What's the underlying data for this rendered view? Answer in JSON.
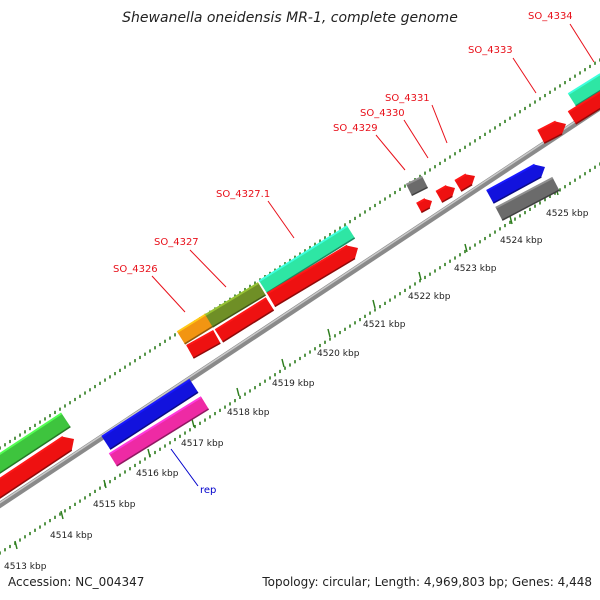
{
  "title": "Shewanella oneidensis MR-1, complete genome",
  "footer": {
    "accession": "Accession: NC_004347",
    "summary": "Topology: circular; Length: 4,969,803 bp; Genes: 4,448"
  },
  "colors": {
    "backbone": "#8a8a8a",
    "tick": "#2e7d1e",
    "label": "#e8101a",
    "rep_label": "#0000cc"
  },
  "ticks": [
    {
      "label": "4513 kbp"
    },
    {
      "label": "4514 kbp"
    },
    {
      "label": "4515 kbp"
    },
    {
      "label": "4516 kbp"
    },
    {
      "label": "4517 kbp"
    },
    {
      "label": "4518 kbp"
    },
    {
      "label": "4519 kbp"
    },
    {
      "label": "4520 kbp"
    },
    {
      "label": "4521 kbp"
    },
    {
      "label": "4522 kbp"
    },
    {
      "label": "4523 kbp"
    },
    {
      "label": "4524 kbp"
    },
    {
      "label": "4525 kbp"
    }
  ],
  "genes": [
    {
      "name": "green-outer",
      "fill": "#3ec43e"
    },
    {
      "name": "red-left",
      "fill": "#ee1111"
    },
    {
      "name": "blue-left",
      "fill": "#1212dd"
    },
    {
      "name": "magenta-rep",
      "fill": "#ee2aa4"
    },
    {
      "name": "SO_4326",
      "fill": "#f29512"
    },
    {
      "name": "SO_4327",
      "fill": "#6f8f26"
    },
    {
      "name": "SO_4327.1",
      "fill": "#2ee6a4"
    },
    {
      "name": "red-4326",
      "fill": "#ee1111"
    },
    {
      "name": "red-4327",
      "fill": "#ee1111"
    },
    {
      "name": "red-4328",
      "fill": "#ee1111"
    },
    {
      "name": "SO_4329",
      "fill": "#6b6b6b"
    },
    {
      "name": "SO_4330",
      "fill": "#ee1111"
    },
    {
      "name": "SO_4331",
      "fill": "#ee1111"
    },
    {
      "name": "red-small",
      "fill": "#ee1111"
    },
    {
      "name": "SO_4333",
      "fill": "#ee1111"
    },
    {
      "name": "SO_4334",
      "fill": "#2ee6a4"
    },
    {
      "name": "red-right",
      "fill": "#ee1111"
    },
    {
      "name": "blue-right",
      "fill": "#1212dd"
    },
    {
      "name": "gray-right",
      "fill": "#6b6b6b"
    }
  ],
  "gene_labels": [
    {
      "text": "SO_4326"
    },
    {
      "text": "SO_4327"
    },
    {
      "text": "SO_4327.1"
    },
    {
      "text": "SO_4329"
    },
    {
      "text": "SO_4330"
    },
    {
      "text": "SO_4331"
    },
    {
      "text": "SO_4333"
    },
    {
      "text": "SO_4334"
    },
    {
      "text": "rep"
    }
  ]
}
